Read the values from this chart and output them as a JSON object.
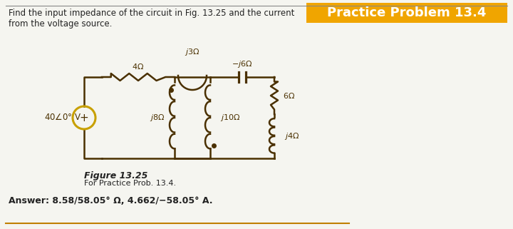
{
  "title_text": "Practice Problem 13.4",
  "title_bg": "#F0A500",
  "title_color": "white",
  "problem_text": "Find the input impedance of the circuit in Fig. 13.25 and the current\nfrom the voltage source.",
  "figure_label": "Figure 13.25",
  "figure_caption": "For Practice Prob. 13.4.",
  "answer_text": "Answer: 8.58​/58.05° Ω, 4.662​/−58.05° A.",
  "bg_color": "#f5f5f0",
  "circuit_color": "#4a3000",
  "wire_color": "#4a3000",
  "source_color": "#c8a000",
  "inductor_color": "#4a4a4a",
  "resistor_color": "#4a4a4a",
  "capacitor_color": "#4a4a4a"
}
